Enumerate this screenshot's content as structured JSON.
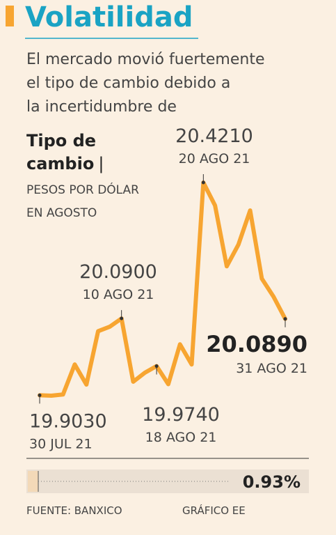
{
  "title": "Volatilidad",
  "subtitle": "El mercado movió fuertemente el tipo de cambio debido a la incertidumbre de agosto.",
  "chart_data": {
    "type": "line",
    "title": "Tipo de cambio",
    "separator": "|",
    "unit_label": "PESOS POR DÓLAR EN AGOSTO",
    "color": "#f7a531",
    "categories": [
      "30 JUL 21",
      null,
      null,
      null,
      null,
      null,
      null,
      "10 AGO 21",
      null,
      null,
      "18 AGO 21",
      null,
      null,
      null,
      "20 AGO 21",
      null,
      null,
      null,
      null,
      null,
      null,
      "31 AGO 21"
    ],
    "values": [
      19.903,
      19.902,
      19.905,
      19.978,
      19.929,
      20.059,
      20.07,
      20.09,
      19.936,
      19.958,
      19.974,
      19.93,
      20.027,
      19.978,
      20.421,
      20.365,
      20.217,
      20.27,
      20.353,
      20.187,
      20.143,
      20.089
    ],
    "value_labels": [
      "19.9030",
      null,
      null,
      null,
      null,
      null,
      null,
      "20.0900",
      null,
      null,
      "19.9740",
      null,
      null,
      null,
      "20.4210",
      null,
      null,
      null,
      null,
      null,
      null,
      "20.0890"
    ]
  },
  "change": {
    "value": 0.93,
    "label": "0.93%"
  },
  "footer": {
    "source": "FUENTE: BANXICO",
    "credit": "GRÁFICO EE"
  }
}
